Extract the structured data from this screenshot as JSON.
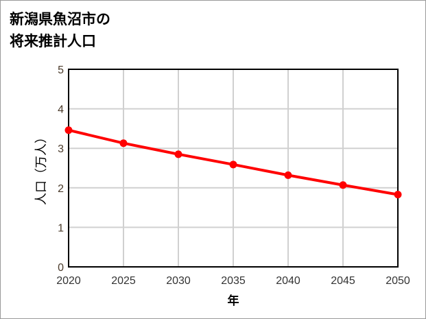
{
  "chart_data": {
    "type": "line",
    "title": [
      "新潟県魚沼市の",
      "将来推計人口"
    ],
    "xlabel": "年",
    "ylabel": "人口（万人）",
    "x": [
      2020,
      2025,
      2030,
      2035,
      2040,
      2045,
      2050
    ],
    "series": [
      {
        "name": "人口",
        "values": [
          3.46,
          3.13,
          2.85,
          2.59,
          2.32,
          2.07,
          1.83
        ],
        "color": "#ff0000"
      }
    ],
    "xlim": [
      2020,
      2050
    ],
    "ylim": [
      0,
      5
    ],
    "yticks": [
      0,
      1,
      2,
      3,
      4,
      5
    ],
    "xticks": [
      2020,
      2025,
      2030,
      2035,
      2040,
      2045,
      2050
    ],
    "grid": true
  }
}
